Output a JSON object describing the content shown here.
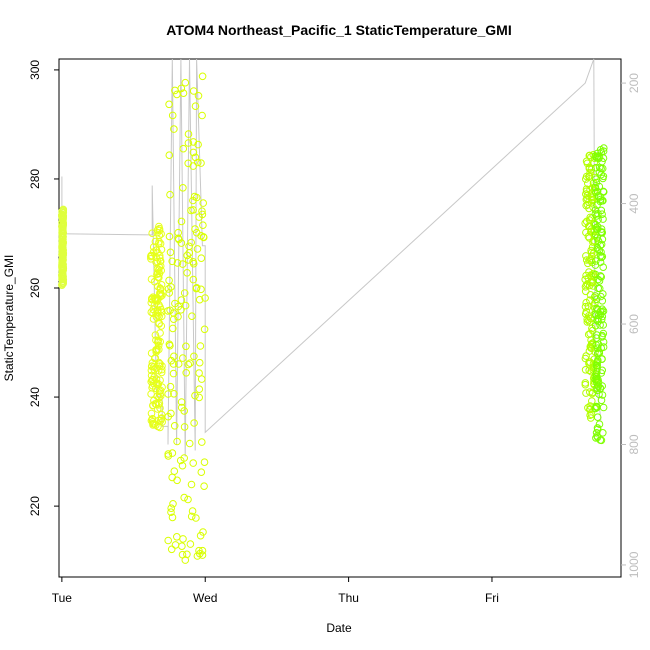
{
  "chart_data": {
    "type": "scatter",
    "title": "ATOM4 Northeast_Pacific_1 StaticTemperature_GMI",
    "xlabel": "Date",
    "ylabel": "StaticTemperature_GMI",
    "x_ticks": [
      "Tue",
      "Wed",
      "Thu",
      "Fri"
    ],
    "x_range_days": [
      -0.02,
      3.9
    ],
    "ylim": [
      207,
      302
    ],
    "y_ticks": [
      220,
      240,
      260,
      280,
      300
    ],
    "y2_ticks": [
      200,
      400,
      600,
      800,
      1000
    ],
    "y2_range": [
      160,
      1020
    ],
    "y2_reversed": true,
    "point_colors": {
      "block1": "#dfff3f",
      "block2": "#e6ff1a",
      "block3": "#d9ff00",
      "block4": "#b3ff00",
      "block5": "#7fff00"
    },
    "line_color": "#c8c8c8",
    "marker": "open-circle",
    "blocks": [
      {
        "name": "block1",
        "x": [
          0.0,
          0.01
        ],
        "y": [
          260.5,
          274.5
        ]
      },
      {
        "name": "block2",
        "x": [
          0.62,
          0.7
        ],
        "y": [
          234.0,
          272.0
        ]
      },
      {
        "name": "block3",
        "x": [
          0.74,
          1.0
        ],
        "y": [
          210.0,
          299.0
        ]
      },
      {
        "name": "block4",
        "x": [
          3.65,
          3.72
        ],
        "y": [
          236.0,
          285.0
        ]
      },
      {
        "name": "block5",
        "x": [
          3.72,
          3.78
        ],
        "y": [
          232.0,
          286.0
        ]
      }
    ],
    "pressure_trace": {
      "description": "gray line showing secondary (right-axis) values",
      "points": [
        [
          0.0,
          355
        ],
        [
          0.0,
          450
        ],
        [
          0.63,
          452
        ],
        [
          0.63,
          370
        ],
        [
          0.66,
          720
        ],
        [
          0.7,
          720
        ],
        [
          0.7,
          770
        ],
        [
          0.74,
          770
        ],
        [
          0.74,
          800
        ],
        [
          0.77,
          160
        ],
        [
          0.8,
          800
        ],
        [
          0.83,
          160
        ],
        [
          0.86,
          820
        ],
        [
          0.89,
          160
        ],
        [
          0.93,
          810
        ],
        [
          0.94,
          160
        ],
        [
          0.98,
          470
        ],
        [
          1.0,
          470
        ],
        [
          1.0,
          780
        ],
        [
          3.65,
          200
        ],
        [
          3.71,
          160
        ],
        [
          3.72,
          700
        ],
        [
          3.74,
          720
        ],
        [
          3.76,
          760
        ]
      ]
    }
  }
}
